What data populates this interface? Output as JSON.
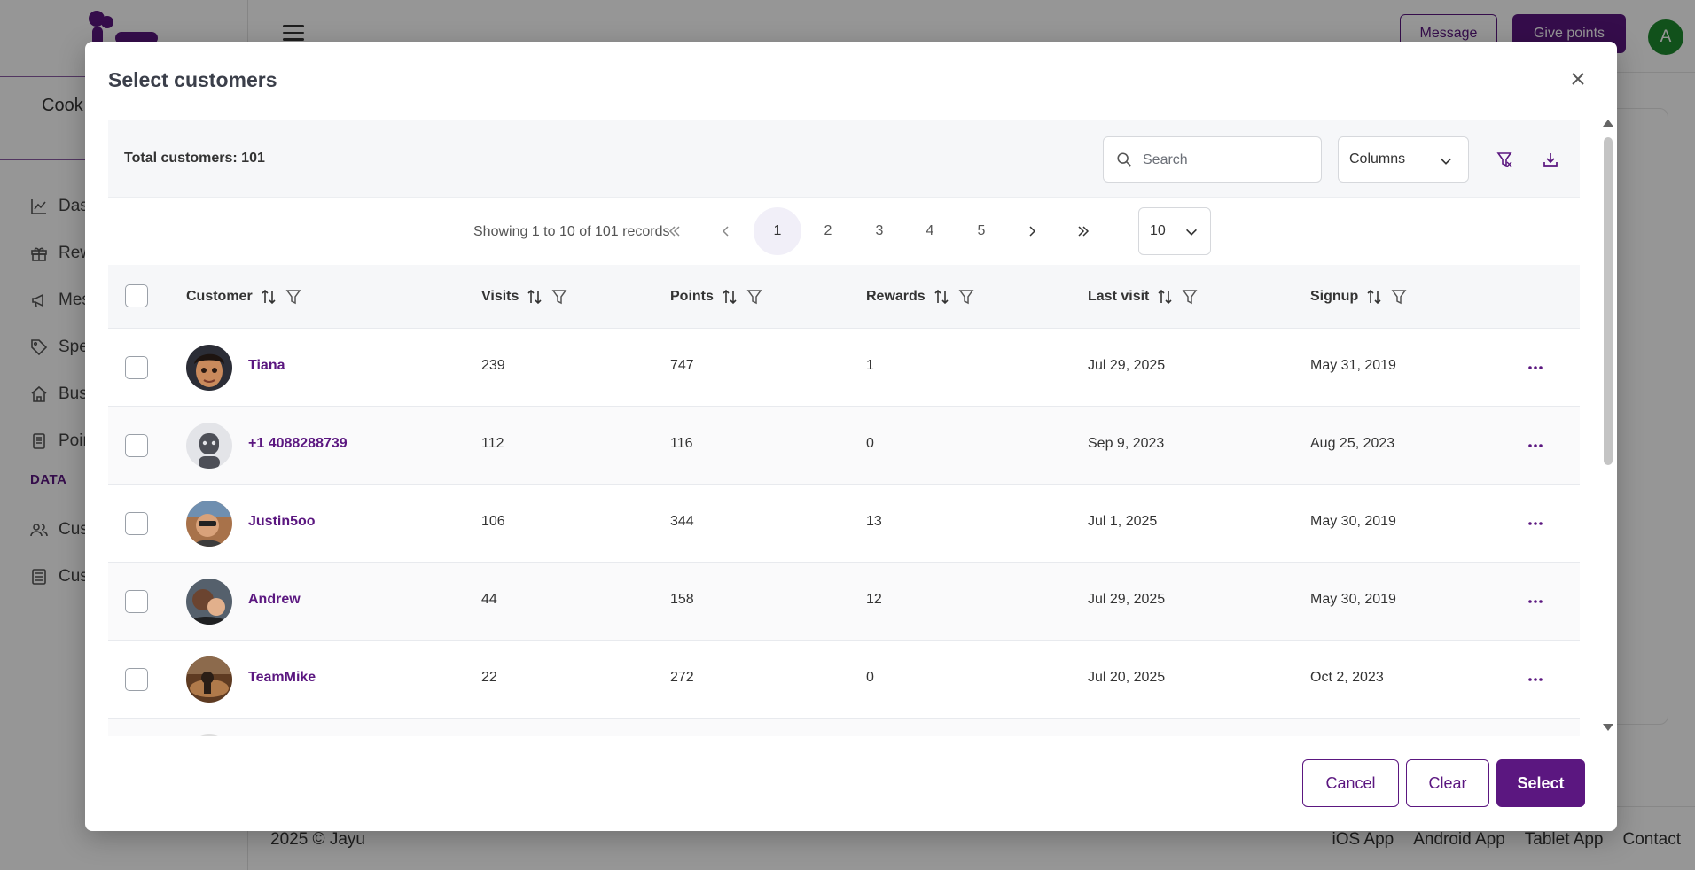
{
  "app": {
    "sidebar": {
      "shop_name": "Cook",
      "items": [
        {
          "label": "Dash",
          "icon": "chart-line-icon"
        },
        {
          "label": "Rew",
          "icon": "gift-icon"
        },
        {
          "label": "Mes",
          "icon": "megaphone-icon"
        },
        {
          "label": "Spe",
          "icon": "tag-icon"
        },
        {
          "label": "Busi",
          "icon": "home-icon"
        },
        {
          "label": "Poin",
          "icon": "tablet-icon"
        }
      ],
      "section_label": "DATA",
      "data_items": [
        {
          "label": "Cus",
          "icon": "users-icon"
        },
        {
          "label": "Cus",
          "icon": "document-icon"
        }
      ]
    },
    "topbar": {
      "message_label": "Message",
      "give_points_label": "Give points",
      "avatar_initial": "A"
    },
    "footer": {
      "copyright": "2025 © Jayu",
      "links": [
        "iOS App",
        "Android App",
        "Tablet App",
        "Contact"
      ]
    }
  },
  "modal": {
    "title": "Select customers",
    "total_label": "Total customers: 101",
    "search_placeholder": "Search",
    "columns_label": "Columns",
    "pagination": {
      "info": "Showing 1 to 10 of 101 records",
      "pages": [
        "1",
        "2",
        "3",
        "4",
        "5"
      ],
      "current_page": "1",
      "page_size": "10"
    },
    "columns": [
      "Customer",
      "Visits",
      "Points",
      "Rewards",
      "Last visit",
      "Signup"
    ],
    "rows": [
      {
        "name": "Tiana",
        "visits": "239",
        "points": "747",
        "rewards": "1",
        "last_visit": "Jul 29, 2025",
        "signup": "May 31, 2019"
      },
      {
        "name": "+1 4088288739",
        "visits": "112",
        "points": "116",
        "rewards": "0",
        "last_visit": "Sep 9, 2023",
        "signup": "Aug 25, 2023"
      },
      {
        "name": "Justin5oo",
        "visits": "106",
        "points": "344",
        "rewards": "13",
        "last_visit": "Jul 1, 2025",
        "signup": "May 30, 2019"
      },
      {
        "name": "Andrew",
        "visits": "44",
        "points": "158",
        "rewards": "12",
        "last_visit": "Jul 29, 2025",
        "signup": "May 30, 2019"
      },
      {
        "name": "TeamMike",
        "visits": "22",
        "points": "272",
        "rewards": "0",
        "last_visit": "Jul 20, 2025",
        "signup": "Oct 2, 2023"
      }
    ],
    "actions": {
      "cancel": "Cancel",
      "clear": "Clear",
      "select": "Select"
    }
  },
  "colors": {
    "brand": "#5b1780",
    "avatar_green": "#1e8a2e",
    "overlay": "rgba(0,0,0,0.41)"
  }
}
